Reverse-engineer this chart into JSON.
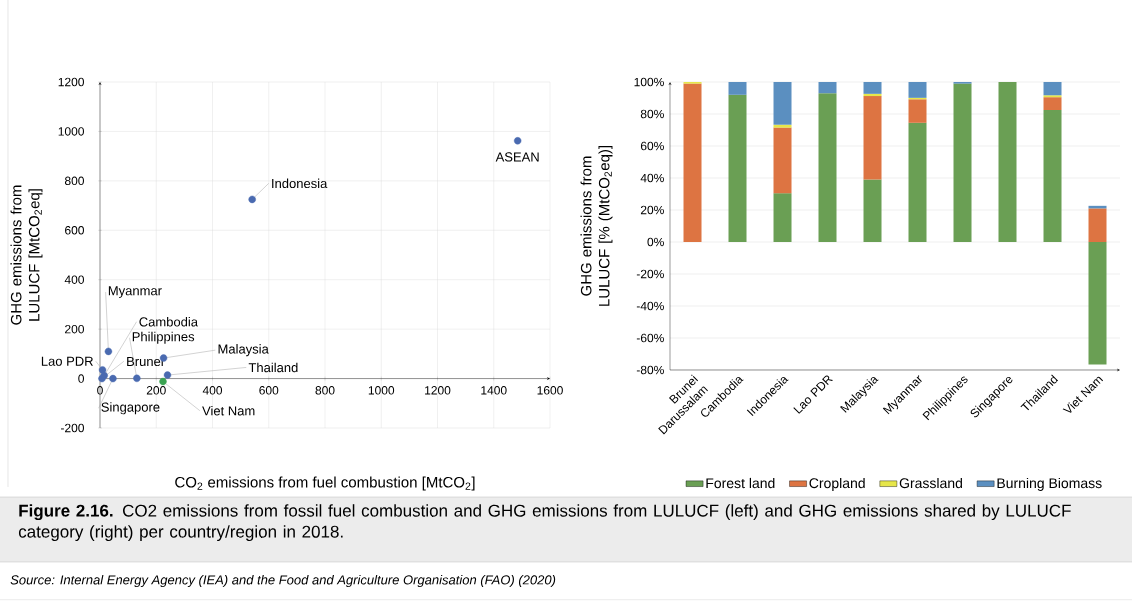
{
  "chart_data": [
    {
      "type": "scatter",
      "xlabel": "CO$_{2}$ emissions from fuel combustion [MtCO$_{2}$]",
      "ylabel": "GHG emissions from LULUCF [MtCO$_{2}$eq]",
      "x": [
        1485,
        541,
        30,
        15,
        131,
        226,
        9,
        7,
        240,
        46,
        224
      ],
      "values": [
        962,
        725,
        110,
        12,
        1,
        83,
        35,
        0,
        14,
        0,
        -12
      ],
      "colors": [
        "#4a6ab0",
        "#4a6ab0",
        "#4a6ab0",
        "#4a6ab0",
        "#4a6ab0",
        "#4a6ab0",
        "#4a6ab0",
        "#4a6ab0",
        "#4a6ab0",
        "#4a6ab0",
        "#3aa352"
      ],
      "xlim": [
        0,
        1600
      ],
      "ylim": [
        -200,
        1200
      ],
      "xticks": [
        0,
        200,
        400,
        600,
        800,
        1000,
        1200,
        1400,
        1600
      ],
      "yticks": [
        -200,
        0,
        200,
        400,
        600,
        800,
        1000,
        1200
      ],
      "grid": true,
      "annotations": [
        {
          "text": "ASEAN",
          "x": 1485,
          "y": 962
        },
        {
          "text": "Indonesia",
          "x": 541,
          "y": 725
        },
        {
          "text": "Myanmar",
          "x": 30,
          "y": 110
        },
        {
          "text": "Cambodia",
          "x": 15,
          "y": 12
        },
        {
          "text": "Philippines",
          "x": 131,
          "y": 1
        },
        {
          "text": "Malaysia",
          "x": 226,
          "y": 83
        },
        {
          "text": "Lao PDR",
          "x": 9,
          "y": 35
        },
        {
          "text": "Brunei",
          "x": 7,
          "y": 0
        },
        {
          "text": "Thailand",
          "x": 240,
          "y": 14
        },
        {
          "text": "Singapore",
          "x": 46,
          "y": 0
        },
        {
          "text": "Viet Nam",
          "x": 224,
          "y": -12
        },
        "**Figure 2.16.** CO2 emissions from fossil fuel combustion and GHG emissions from LULUCF (left) and GHG emissions shared by LULUCF category (right) per country/region in 2018.",
        "Source: Internal Energy Agency (IEA) and the Food and Agriculture Organisation (FAO) (2020)"
      ]
    },
    {
      "type": "bar",
      "stacked": true,
      "ylabel": "GHG emissions from LULUCF [% (MtCO$_{2}$eq)]",
      "categories": [
        "Brunei Darussalam",
        "Cambodia",
        "Indonesia",
        "Lao PDR",
        "Malaysia",
        "Myanmar",
        "Philippines",
        "Singapore",
        "Thailand",
        "Viet Nam"
      ],
      "series": [
        {
          "name": "Forest land",
          "color": "#6a9f54",
          "values": [
            0,
            92,
            30.5,
            93,
            39,
            74.5,
            99,
            100,
            82.5,
            -76.5
          ]
        },
        {
          "name": "Cropland",
          "color": "#dd7442",
          "values": [
            99,
            0,
            41,
            0,
            52.2,
            14.7,
            0,
            0,
            8,
            21
          ]
        },
        {
          "name": "Grassland",
          "color": "#e6e64a",
          "values": [
            1,
            0,
            1.8,
            0,
            1.4,
            0.9,
            0,
            0,
            1.2,
            0
          ]
        },
        {
          "name": "Burning Biomass",
          "color": "#5b8fc0",
          "values": [
            0,
            8,
            26.7,
            7,
            7.4,
            9.9,
            1,
            0,
            8.3,
            1.6
          ]
        }
      ],
      "ylim": [
        -80,
        100
      ],
      "yticks": [
        {
          "value": -80,
          "label": "-80%"
        },
        {
          "value": -60,
          "label": "-60%"
        },
        {
          "value": -40,
          "label": "-40%"
        },
        {
          "value": -20,
          "label": "-20%"
        },
        {
          "value": 0,
          "label": "0%"
        },
        {
          "value": 20,
          "label": "20%"
        },
        {
          "value": 40,
          "label": "40%"
        },
        {
          "value": 60,
          "label": "60%"
        },
        {
          "value": 80,
          "label": "80%"
        },
        {
          "value": 100,
          "label": "100%"
        }
      ],
      "grid": "y",
      "legend": "bottom"
    }
  ]
}
